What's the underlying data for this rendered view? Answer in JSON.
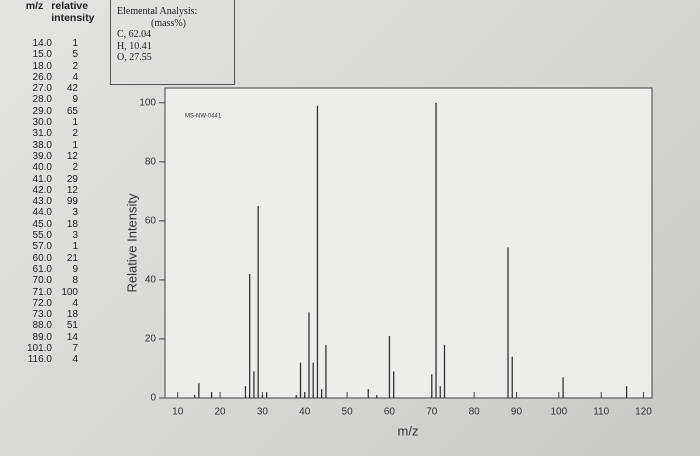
{
  "table_header": [
    "m/z",
    "relative intensity"
  ],
  "elemental_analysis": {
    "title": "Elemental Analysis:",
    "unit": "(mass%)",
    "items": [
      "C, 62.04",
      "H, 10.41",
      "O, 27.55"
    ]
  },
  "chart_data": {
    "type": "stem",
    "annotation": "MS-NW-0441",
    "x_label": "m/z",
    "y_label": "Relative Intensity",
    "x": [
      14,
      15,
      18,
      26,
      27,
      28,
      29,
      30,
      31,
      38,
      39,
      40,
      41,
      42,
      43,
      44,
      45,
      55,
      57,
      60,
      61,
      70,
      71,
      72,
      73,
      88,
      89,
      101,
      116
    ],
    "x_labels": [
      "14.0",
      "15.0",
      "18.0",
      "26.0",
      "27.0",
      "28.0",
      "29.0",
      "30.0",
      "31.0",
      "38.0",
      "39.0",
      "40.0",
      "41.0",
      "42.0",
      "43.0",
      "44.0",
      "45.0",
      "55.0",
      "57.0",
      "60.0",
      "61.0",
      "70.0",
      "71.0",
      "72.0",
      "73.0",
      "88.0",
      "89.0",
      "101.0",
      "116.0"
    ],
    "values": [
      1,
      5,
      2,
      4,
      42,
      9,
      65,
      1,
      2,
      1,
      12,
      2,
      29,
      12,
      99,
      3,
      18,
      3,
      1,
      21,
      9,
      8,
      100,
      4,
      18,
      51,
      14,
      7,
      4
    ],
    "color": "#333333",
    "xlim": [
      7,
      122
    ],
    "xticks": [
      10,
      20,
      30,
      40,
      50,
      60,
      70,
      80,
      90,
      100,
      110,
      120
    ],
    "ylim": [
      0,
      105
    ],
    "yticks": [
      0,
      20,
      40,
      60,
      80,
      100
    ]
  }
}
